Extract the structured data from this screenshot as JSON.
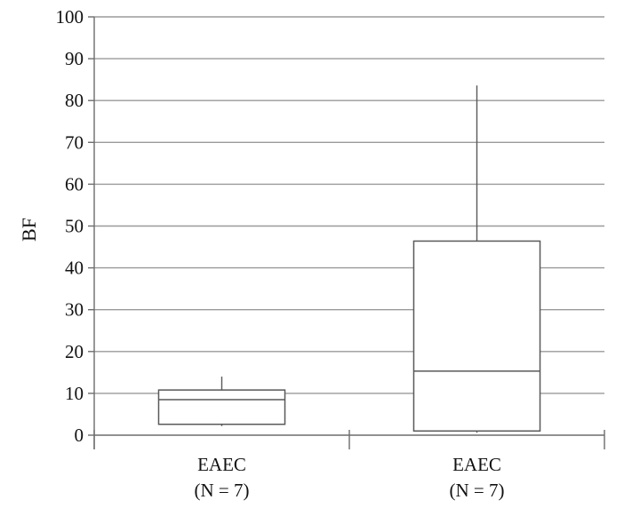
{
  "chart_data": {
    "type": "box",
    "title": "",
    "xlabel": "",
    "ylabel": "BF",
    "ylim": [
      0,
      100
    ],
    "y_ticks": [
      0,
      10,
      20,
      30,
      40,
      50,
      60,
      70,
      80,
      90,
      100
    ],
    "grid": true,
    "legend": "none",
    "categories": [
      {
        "line1": "EAEC",
        "line2": "(N = 7)"
      },
      {
        "line1": "EAEC",
        "line2": "(N = 7)"
      }
    ],
    "series": [
      {
        "values": [
          {
            "min": 2.6,
            "q1": 2.6,
            "median": 8.5,
            "q3": 10.8,
            "max": 14.0
          },
          {
            "min": 1.0,
            "q1": 1.0,
            "median": 15.3,
            "q3": 46.4,
            "max": 83.6
          }
        ]
      }
    ],
    "colors": {
      "grid": "#9a9a9a",
      "axis": "#6d6d6d",
      "box_stroke": "#595959",
      "box_fill": "#ffffff",
      "text": "#111111"
    }
  }
}
